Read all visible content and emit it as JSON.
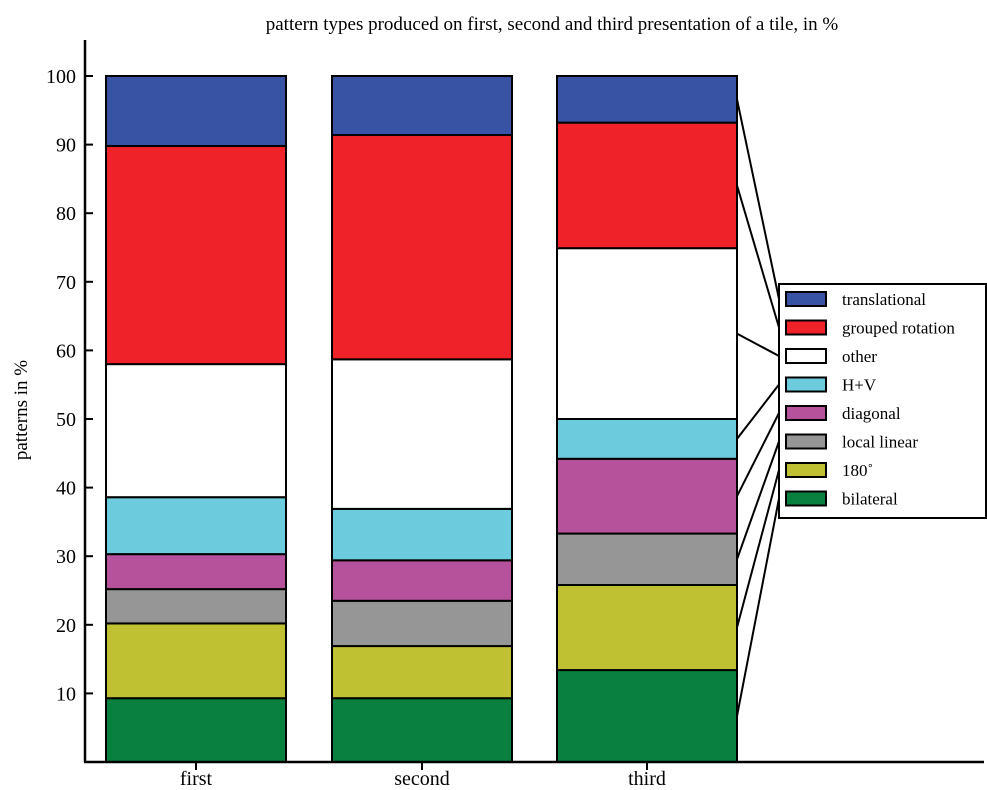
{
  "chart_data": {
    "type": "bar",
    "stacked": true,
    "title": "pattern types produced on first, second and third presentation of a tile, in %",
    "xlabel": "",
    "ylabel": "patterns in %",
    "categories": [
      "first",
      "second",
      "third"
    ],
    "ylim": [
      0,
      100
    ],
    "yticks": [
      10,
      20,
      30,
      40,
      50,
      60,
      70,
      80,
      90,
      100
    ],
    "grid": false,
    "legend_position": "right",
    "series": [
      {
        "name": "bilateral",
        "color": "#0a8040",
        "values": [
          9.3,
          9.3,
          13.4
        ]
      },
      {
        "name": "180˚",
        "color": "#c0c033",
        "values": [
          10.9,
          7.6,
          12.4
        ]
      },
      {
        "name": "local linear",
        "color": "#969696",
        "values": [
          5.0,
          6.6,
          7.5
        ]
      },
      {
        "name": "diagonal",
        "color": "#b5529b",
        "values": [
          5.1,
          5.9,
          10.9
        ]
      },
      {
        "name": "H+V",
        "color": "#6ccbdc",
        "values": [
          8.3,
          7.5,
          5.8
        ]
      },
      {
        "name": "other",
        "color": "#ffffff",
        "values": [
          19.4,
          21.8,
          24.9
        ]
      },
      {
        "name": "grouped rotation",
        "color": "#ee2228",
        "values": [
          31.8,
          32.7,
          18.3
        ]
      },
      {
        "name": "translational",
        "color": "#3953a4",
        "values": [
          10.2,
          8.6,
          6.8
        ]
      }
    ],
    "legend_order": [
      "translational",
      "grouped rotation",
      "other",
      "H+V",
      "diagonal",
      "local linear",
      "180˚",
      "bilateral"
    ]
  }
}
